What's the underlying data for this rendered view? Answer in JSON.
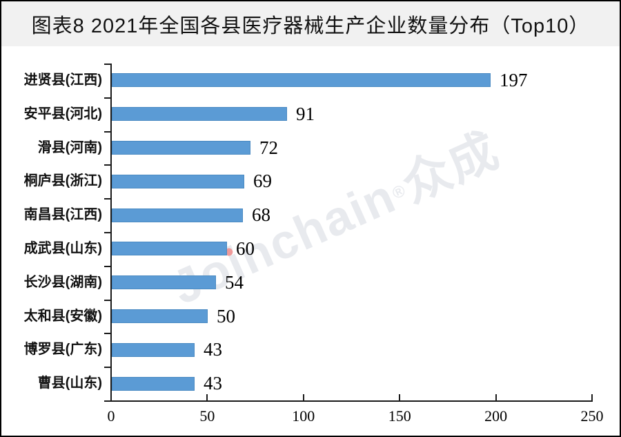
{
  "title": "图表8 2021年全国各县医疗器械生产企业数量分布（Top10）",
  "watermark": {
    "latin": "Joinchain",
    "reg": "®",
    "cjk": "众成"
  },
  "colors": {
    "bar": "#5b9bd5",
    "bar_border": "#4a8ac2",
    "axis": "#1a1a1a",
    "title_band_bg": "#f1f1f1",
    "watermark": "#e8eaee",
    "watermark_dot": "#ef9a9a"
  },
  "chart_data": {
    "type": "bar",
    "orientation": "horizontal",
    "title": "图表8 2021年全国各县医疗器械生产企业数量分布（Top10）",
    "categories": [
      "进贤县(江西)",
      "安平县(河北)",
      "滑县(河南)",
      "桐庐县(浙江)",
      "南昌县(江西)",
      "成武县(山东)",
      "长沙县(湖南)",
      "太和县(安徽)",
      "博罗县(广东)",
      "曹县(山东)"
    ],
    "values": [
      197,
      91,
      72,
      69,
      68,
      60,
      54,
      50,
      43,
      43
    ],
    "data_labels": [
      "197",
      "91",
      "72",
      "69",
      "68",
      "60",
      "54",
      "50",
      "43",
      "43"
    ],
    "xlabel": "",
    "ylabel": "",
    "xlim": [
      0,
      250
    ],
    "x_ticks": [
      0,
      50,
      100,
      150,
      200,
      250
    ],
    "grid": false,
    "legend": false,
    "bar_color": "#5b9bd5"
  }
}
